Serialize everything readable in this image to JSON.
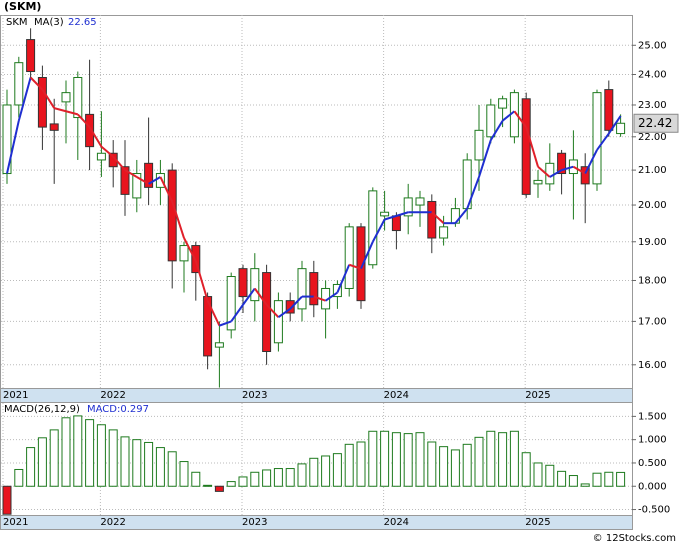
{
  "chart_data": [
    {
      "type": "candlestick",
      "title": "(SKM)",
      "name": "SKM",
      "categories": [
        "2021",
        null,
        null,
        null,
        null,
        null,
        null,
        null,
        "2022",
        null,
        null,
        null,
        null,
        null,
        null,
        null,
        null,
        null,
        null,
        null,
        "2023",
        null,
        null,
        null,
        null,
        null,
        null,
        null,
        null,
        null,
        null,
        null,
        "2024",
        null,
        null,
        null,
        null,
        null,
        null,
        null,
        null,
        null,
        null,
        null,
        "2025",
        null,
        null,
        null,
        null,
        null,
        null,
        null,
        null
      ],
      "open": [
        20.9,
        23.0,
        25.2,
        23.9,
        22.4,
        23.1,
        22.6,
        22.7,
        21.3,
        21.5,
        21.1,
        20.2,
        21.2,
        20.5,
        21.0,
        18.5,
        18.9,
        17.6,
        16.4,
        16.8,
        18.3,
        17.5,
        18.2,
        16.5,
        17.5,
        17.3,
        18.2,
        17.3,
        17.6,
        17.8,
        19.4,
        18.4,
        19.7,
        19.7,
        19.7,
        20.0,
        20.1,
        19.1,
        19.5,
        19.9,
        21.3,
        22.0,
        22.9,
        22.0,
        23.2,
        20.6,
        20.6,
        21.5,
        20.9,
        21.1,
        20.6,
        23.5,
        22.1
      ],
      "high": [
        23.5,
        24.6,
        25.6,
        24.3,
        23.2,
        23.8,
        24.1,
        24.5,
        22.8,
        21.9,
        21.9,
        21.3,
        22.6,
        21.3,
        21.2,
        19.0,
        19.0,
        17.7,
        17.0,
        18.2,
        18.4,
        18.7,
        18.4,
        17.7,
        17.7,
        18.5,
        18.5,
        18.0,
        18.0,
        19.5,
        19.5,
        20.5,
        20.4,
        19.8,
        20.6,
        20.4,
        20.3,
        19.7,
        20.2,
        21.5,
        23.0,
        23.2,
        23.3,
        23.5,
        23.4,
        21.0,
        21.8,
        21.6,
        22.2,
        21.5,
        23.5,
        23.8,
        22.7
      ],
      "low": [
        20.6,
        22.6,
        23.8,
        21.6,
        20.6,
        21.8,
        21.3,
        21.0,
        20.8,
        20.5,
        19.7,
        19.8,
        20.0,
        20.0,
        17.8,
        17.7,
        17.5,
        15.9,
        15.5,
        16.6,
        17.2,
        17.0,
        16.0,
        16.3,
        17.0,
        17.0,
        17.1,
        16.6,
        17.3,
        17.6,
        17.3,
        18.3,
        19.3,
        18.8,
        19.2,
        19.4,
        18.7,
        18.9,
        19.4,
        19.6,
        20.4,
        21.8,
        22.3,
        21.8,
        20.2,
        20.2,
        20.4,
        20.3,
        19.6,
        19.5,
        20.4,
        22.0,
        22.0
      ],
      "close": [
        23.0,
        24.4,
        24.1,
        22.3,
        22.2,
        23.4,
        23.9,
        21.7,
        21.5,
        21.1,
        20.3,
        20.9,
        20.5,
        20.9,
        18.5,
        18.9,
        18.2,
        16.2,
        16.5,
        18.1,
        17.6,
        18.3,
        16.3,
        17.5,
        17.2,
        18.3,
        17.4,
        17.8,
        17.9,
        19.4,
        17.5,
        20.4,
        19.8,
        19.3,
        20.2,
        20.2,
        19.1,
        19.4,
        19.9,
        21.3,
        22.2,
        23.0,
        23.2,
        23.4,
        20.3,
        20.7,
        21.2,
        20.9,
        21.3,
        20.6,
        23.4,
        22.2,
        22.42
      ],
      "close_label": "22.42",
      "up_color": "#1e7a1e",
      "down_color": "#e8141e",
      "ma": {
        "name": "MA(3)",
        "value_label": "22.65",
        "up_color": "#1f2fd0",
        "down_color": "#e0202a",
        "values": [
          20.9,
          22.5,
          23.9,
          23.5,
          22.9,
          22.8,
          22.7,
          22.3,
          21.7,
          21.4,
          21.0,
          20.8,
          20.6,
          20.8,
          20.1,
          19.1,
          18.5,
          17.5,
          16.9,
          17.0,
          17.4,
          17.8,
          17.4,
          17.1,
          17.3,
          17.6,
          17.6,
          17.5,
          17.7,
          18.4,
          18.3,
          19.0,
          19.6,
          19.7,
          19.8,
          19.8,
          19.8,
          19.5,
          19.5,
          19.9,
          20.8,
          21.9,
          22.5,
          22.8,
          22.3,
          21.1,
          20.8,
          21.0,
          21.1,
          20.9,
          21.6,
          22.1,
          22.65
        ]
      },
      "log_scale": true,
      "grid": true,
      "ylim": [
        15.49,
        26.08
      ],
      "yticks": [
        {
          "value": 16,
          "label": "16.00"
        },
        {
          "value": 17,
          "label": "17.00"
        },
        {
          "value": 18,
          "label": "18.00"
        },
        {
          "value": 19,
          "label": "19.00"
        },
        {
          "value": 20,
          "label": "20.00"
        },
        {
          "value": 21,
          "label": "21.00"
        },
        {
          "value": 22,
          "label": "22.00"
        },
        {
          "value": 23,
          "label": "23.00"
        },
        {
          "value": 24,
          "label": "24.00"
        },
        {
          "value": 25,
          "label": "25.00"
        }
      ]
    },
    {
      "type": "bar",
      "name": "MACD(26,12,9)",
      "value_label": "MACD:0.297",
      "categories": [
        "2021",
        null,
        null,
        null,
        null,
        null,
        null,
        null,
        "2022",
        null,
        null,
        null,
        null,
        null,
        null,
        null,
        null,
        null,
        null,
        null,
        "2023",
        null,
        null,
        null,
        null,
        null,
        null,
        null,
        null,
        null,
        null,
        null,
        "2024",
        null,
        null,
        null,
        null,
        null,
        null,
        null,
        null,
        null,
        null,
        null,
        "2025",
        null,
        null,
        null,
        null,
        null,
        null,
        null,
        null
      ],
      "values": [
        -0.6,
        0.36,
        0.83,
        1.04,
        1.21,
        1.47,
        1.51,
        1.43,
        1.32,
        1.21,
        1.06,
        1.0,
        0.94,
        0.83,
        0.74,
        0.53,
        0.3,
        0.02,
        -0.11,
        0.1,
        0.2,
        0.3,
        0.35,
        0.38,
        0.38,
        0.48,
        0.6,
        0.65,
        0.7,
        0.9,
        0.95,
        1.18,
        1.18,
        1.15,
        1.13,
        1.15,
        0.95,
        0.85,
        0.78,
        0.9,
        1.05,
        1.18,
        1.15,
        1.18,
        0.72,
        0.5,
        0.45,
        0.32,
        0.23,
        0.05,
        0.28,
        0.3,
        0.297
      ],
      "up_color": "#1e7a1e",
      "down_color": "#e8141e",
      "grid": true,
      "ylim": [
        -0.617,
        1.787
      ],
      "yticks": [
        {
          "value": -0.5,
          "label": "-0.500"
        },
        {
          "value": 0,
          "label": "0.000"
        },
        {
          "value": 0.5,
          "label": "0.500"
        },
        {
          "value": 1,
          "label": "1.000"
        },
        {
          "value": 1.5,
          "label": "1.500"
        }
      ]
    }
  ],
  "watermark": "© 12Stocks.com"
}
